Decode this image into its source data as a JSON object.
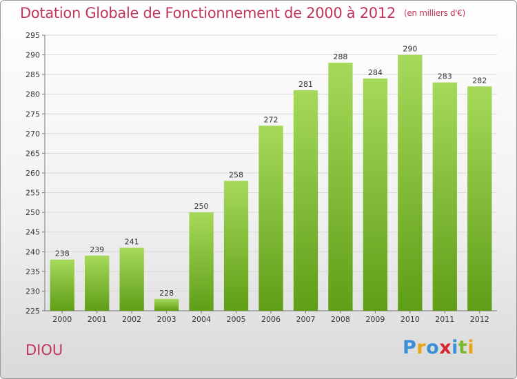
{
  "header": {
    "title": "Dotation Globale de Fonctionnement de 2000 à 2012",
    "unit": "(en milliers d'€)"
  },
  "footer": {
    "commune": "DIOU",
    "logo_text": "Proxiti",
    "logo_colors": [
      "#3a8fd6",
      "#e8a317",
      "#3a8fd6",
      "#d7262f",
      "#3a8fd6",
      "#7cb82f",
      "#e8a317"
    ]
  },
  "colors": {
    "title": "#c1365b",
    "bar_light": "#a6d95a",
    "bar_dark": "#5f9e17",
    "grid": "#d8d8d8"
  },
  "chart_data": {
    "type": "bar",
    "categories": [
      "2000",
      "2001",
      "2002",
      "2003",
      "2004",
      "2005",
      "2006",
      "2007",
      "2008",
      "2009",
      "2010",
      "2011",
      "2012"
    ],
    "values": [
      238,
      239,
      241,
      228,
      250,
      258,
      272,
      281,
      288,
      284,
      290,
      283,
      282
    ],
    "ylim": [
      225,
      295
    ],
    "yticks": [
      225,
      230,
      235,
      240,
      245,
      250,
      255,
      260,
      265,
      270,
      275,
      280,
      285,
      290,
      295
    ],
    "grid": true,
    "xlabel": "",
    "ylabel": ""
  }
}
